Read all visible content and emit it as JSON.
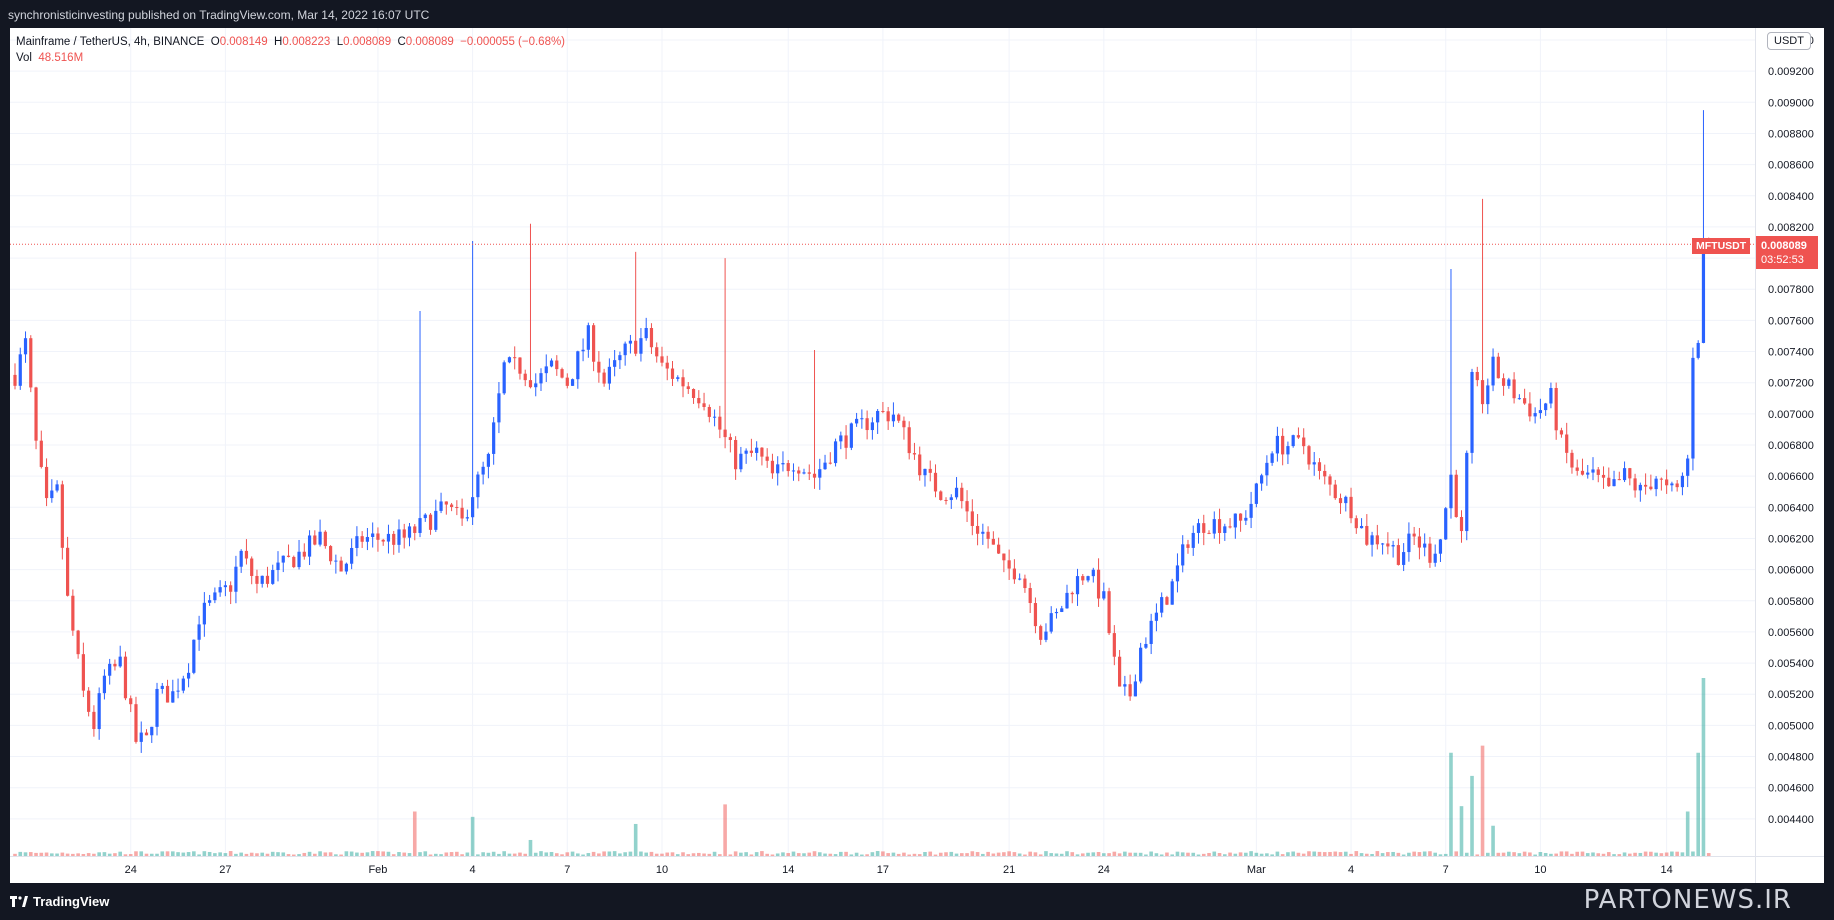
{
  "header": {
    "published": "synchronisticinvesting published on TradingView.com, Mar 14, 2022 16:07 UTC"
  },
  "legend": {
    "symbol": "Mainframe / TetherUS, 4h, BINANCE",
    "o_label": "O",
    "o": "0.008149",
    "h_label": "H",
    "h": "0.008223",
    "l_label": "L",
    "l": "0.008089",
    "c_label": "C",
    "c": "0.008089",
    "change": "−0.000055 (−0.68%)",
    "vol_label": "Vol",
    "vol": "48.516M"
  },
  "axis": {
    "currency_badge": "USDT"
  },
  "price_tag": {
    "symbol": "MFTUSDT",
    "price": "0.008089",
    "countdown": "03:52:53"
  },
  "footer": {
    "logo_text": "TradingView",
    "watermark": "PARTONEWS.IR"
  },
  "colors": {
    "up": "#2962ff",
    "down": "#ef5350",
    "vol_up": "#26a69a",
    "vol_down": "#ef5350",
    "grid": "#f0f3fa"
  },
  "chart_data": {
    "type": "candlestick",
    "series_name": "Mainframe / TetherUS, 4h, BINANCE",
    "interval": "4h",
    "ylim": [
      0.0042,
      0.0094
    ],
    "y_ticks": [
      "0.009400",
      "0.009200",
      "0.009000",
      "0.008800",
      "0.008600",
      "0.008400",
      "0.008200",
      "0.008000",
      "0.007800",
      "0.007600",
      "0.007400",
      "0.007200",
      "0.007000",
      "0.006800",
      "0.006600",
      "0.006400",
      "0.006200",
      "0.006000",
      "0.005800",
      "0.005600",
      "0.005400",
      "0.005200",
      "0.005000",
      "0.004800",
      "0.004600",
      "0.004400"
    ],
    "x_ticks": [
      {
        "label": "24",
        "index": 22
      },
      {
        "label": "27",
        "index": 40
      },
      {
        "label": "Feb",
        "index": 69
      },
      {
        "label": "4",
        "index": 87
      },
      {
        "label": "7",
        "index": 105
      },
      {
        "label": "10",
        "index": 123
      },
      {
        "label": "14",
        "index": 147
      },
      {
        "label": "17",
        "index": 165
      },
      {
        "label": "21",
        "index": 189
      },
      {
        "label": "24",
        "index": 207
      },
      {
        "label": "Mar",
        "index": 236
      },
      {
        "label": "4",
        "index": 254
      },
      {
        "label": "7",
        "index": 272
      },
      {
        "label": "10",
        "index": 290
      },
      {
        "label": "14",
        "index": 314
      }
    ],
    "last_price": 0.008089,
    "path_anchors": [
      [
        0,
        0.00725
      ],
      [
        2,
        0.00745
      ],
      [
        4,
        0.0068
      ],
      [
        6,
        0.0064
      ],
      [
        8,
        0.0065
      ],
      [
        10,
        0.0058
      ],
      [
        13,
        0.0052
      ],
      [
        15,
        0.005
      ],
      [
        17,
        0.0053
      ],
      [
        20,
        0.0054
      ],
      [
        23,
        0.0049
      ],
      [
        25,
        0.0049
      ],
      [
        27,
        0.0052
      ],
      [
        30,
        0.0052
      ],
      [
        33,
        0.0054
      ],
      [
        35,
        0.0057
      ],
      [
        38,
        0.0058
      ],
      [
        41,
        0.0059
      ],
      [
        43,
        0.0061
      ],
      [
        46,
        0.0059
      ],
      [
        50,
        0.006
      ],
      [
        54,
        0.0061
      ],
      [
        58,
        0.0062
      ],
      [
        62,
        0.006
      ],
      [
        66,
        0.0062
      ],
      [
        70,
        0.0062
      ],
      [
        74,
        0.0062
      ],
      [
        78,
        0.0063
      ],
      [
        82,
        0.0064
      ],
      [
        85,
        0.0063
      ],
      [
        87,
        0.0065
      ],
      [
        90,
        0.0067
      ],
      [
        93,
        0.0073
      ],
      [
        96,
        0.0073
      ],
      [
        99,
        0.0072
      ],
      [
        102,
        0.0073
      ],
      [
        105,
        0.0072
      ],
      [
        109,
        0.0075
      ],
      [
        112,
        0.0072
      ],
      [
        116,
        0.0074
      ],
      [
        120,
        0.0075
      ],
      [
        123,
        0.0073
      ],
      [
        127,
        0.0072
      ],
      [
        131,
        0.0071
      ],
      [
        134,
        0.0069
      ],
      [
        137,
        0.0067
      ],
      [
        141,
        0.00675
      ],
      [
        144,
        0.0066
      ],
      [
        148,
        0.0067
      ],
      [
        152,
        0.0066
      ],
      [
        156,
        0.0068
      ],
      [
        160,
        0.0069
      ],
      [
        164,
        0.007
      ],
      [
        167,
        0.007
      ],
      [
        170,
        0.0068
      ],
      [
        173,
        0.0066
      ],
      [
        176,
        0.0065
      ],
      [
        179,
        0.0065
      ],
      [
        182,
        0.0063
      ],
      [
        185,
        0.0062
      ],
      [
        188,
        0.006
      ],
      [
        191,
        0.006
      ],
      [
        193,
        0.0058
      ],
      [
        195,
        0.0056
      ],
      [
        198,
        0.0057
      ],
      [
        201,
        0.0059
      ],
      [
        204,
        0.006
      ],
      [
        207,
        0.0058
      ],
      [
        210,
        0.0052
      ],
      [
        212,
        0.0052
      ],
      [
        214,
        0.0055
      ],
      [
        217,
        0.0057
      ],
      [
        220,
        0.0059
      ],
      [
        223,
        0.0062
      ],
      [
        226,
        0.0063
      ],
      [
        230,
        0.0063
      ],
      [
        233,
        0.0063
      ],
      [
        236,
        0.0065
      ],
      [
        239,
        0.0068
      ],
      [
        242,
        0.0068
      ],
      [
        245,
        0.0068
      ],
      [
        248,
        0.0066
      ],
      [
        251,
        0.0065
      ],
      [
        254,
        0.0064
      ],
      [
        257,
        0.0062
      ],
      [
        260,
        0.0062
      ],
      [
        263,
        0.0061
      ],
      [
        266,
        0.0062
      ],
      [
        269,
        0.0061
      ],
      [
        271,
        0.0062
      ],
      [
        273,
        0.0066
      ],
      [
        275,
        0.0062
      ],
      [
        277,
        0.0072
      ],
      [
        279,
        0.0071
      ],
      [
        281,
        0.0073
      ],
      [
        283,
        0.0072
      ],
      [
        286,
        0.0071
      ],
      [
        289,
        0.007
      ],
      [
        292,
        0.0071
      ],
      [
        294,
        0.0068
      ],
      [
        297,
        0.0066
      ],
      [
        300,
        0.0066
      ],
      [
        303,
        0.0065
      ],
      [
        306,
        0.0066
      ],
      [
        309,
        0.0065
      ],
      [
        312,
        0.0066
      ],
      [
        314,
        0.0065
      ],
      [
        316,
        0.0065
      ],
      [
        318,
        0.0067
      ],
      [
        319,
        0.0074
      ],
      [
        320,
        0.0075
      ],
      [
        321,
        0.0081
      ],
      [
        322,
        0.00809
      ]
    ],
    "spikes": [
      {
        "index": 87,
        "high": 0.00811,
        "color": "up"
      },
      {
        "index": 77,
        "high": 0.00766,
        "color": "down"
      },
      {
        "index": 98,
        "high": 0.00822,
        "color": "up"
      },
      {
        "index": 118,
        "high": 0.00804,
        "color": "up"
      },
      {
        "index": 135,
        "high": 0.008,
        "color": "down"
      },
      {
        "index": 152,
        "high": 0.00741,
        "color": "down"
      },
      {
        "index": 273,
        "high": 0.00793,
        "color": "up"
      },
      {
        "index": 279,
        "high": 0.00838,
        "color": "down"
      },
      {
        "index": 321,
        "high": 0.00895,
        "color": "up"
      }
    ],
    "volume_spikes": [
      {
        "index": 76,
        "value": 0.25,
        "color": "down"
      },
      {
        "index": 87,
        "value": 0.22,
        "color": "up"
      },
      {
        "index": 98,
        "value": 0.09,
        "color": "up"
      },
      {
        "index": 118,
        "value": 0.18,
        "color": "up"
      },
      {
        "index": 135,
        "value": 0.29,
        "color": "down"
      },
      {
        "index": 273,
        "value": 0.58,
        "color": "up"
      },
      {
        "index": 275,
        "value": 0.28,
        "color": "up"
      },
      {
        "index": 277,
        "value": 0.45,
        "color": "up"
      },
      {
        "index": 279,
        "value": 0.62,
        "color": "down"
      },
      {
        "index": 281,
        "value": 0.17,
        "color": "up"
      },
      {
        "index": 318,
        "value": 0.25,
        "color": "up"
      },
      {
        "index": 320,
        "value": 0.58,
        "color": "up"
      },
      {
        "index": 321,
        "value": 1.0,
        "color": "up"
      }
    ]
  }
}
